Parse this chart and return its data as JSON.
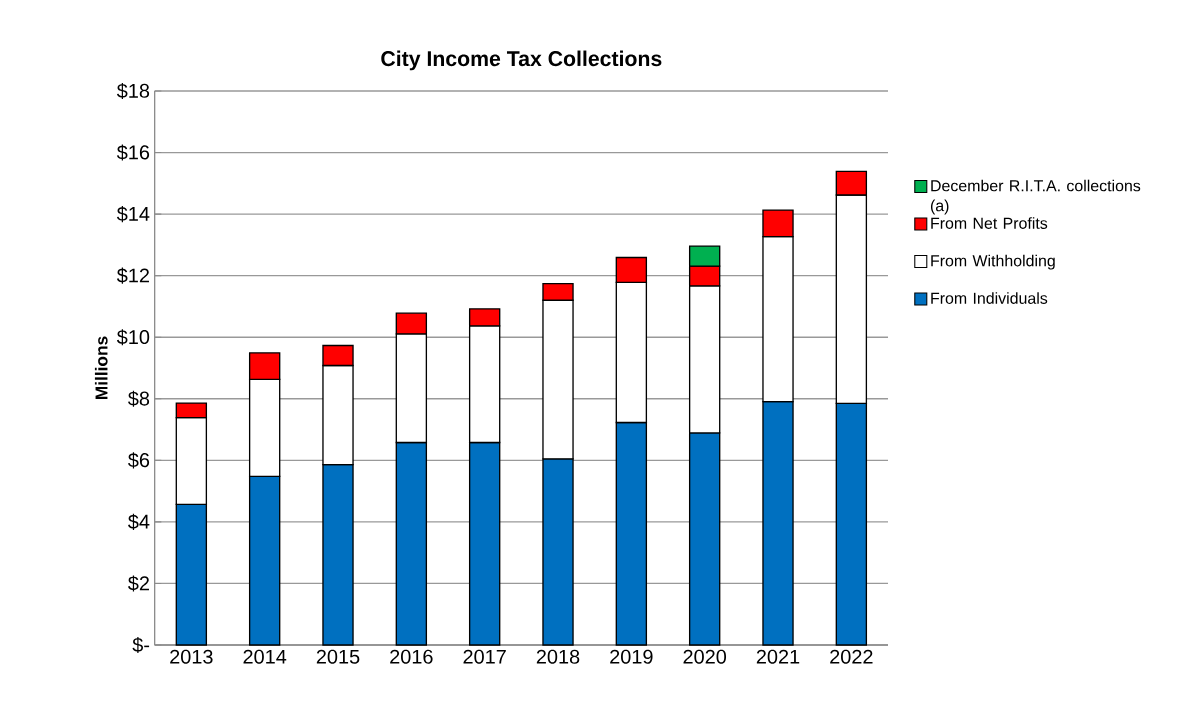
{
  "chart_data": {
    "type": "bar",
    "stacked": true,
    "title": "City Income Tax Collections",
    "ylabel": "Millions",
    "categories": [
      "2013",
      "2014",
      "2015",
      "2016",
      "2017",
      "2018",
      "2019",
      "2020",
      "2021",
      "2022"
    ],
    "series": [
      {
        "name": "From Individuals",
        "color": "#0070c0",
        "values": [
          4.57,
          5.48,
          5.86,
          6.58,
          6.58,
          6.05,
          7.23,
          6.89,
          7.91,
          7.85
        ]
      },
      {
        "name": "From Withholding",
        "color": "#ffffff",
        "values": [
          2.82,
          3.15,
          3.22,
          3.53,
          3.79,
          5.15,
          4.55,
          4.78,
          5.36,
          6.77
        ]
      },
      {
        "name": "From Net Profits",
        "color": "#ff0000",
        "values": [
          0.47,
          0.86,
          0.65,
          0.67,
          0.55,
          0.54,
          0.81,
          0.64,
          0.86,
          0.77
        ]
      },
      {
        "name": "December R.I.T.A. collections (a)",
        "color": "#00b050",
        "values": [
          null,
          null,
          null,
          null,
          null,
          null,
          null,
          0.65,
          null,
          null
        ]
      }
    ],
    "ylim": [
      0,
      18
    ],
    "yticks": [
      {
        "value": 0,
        "label": "$-"
      },
      {
        "value": 2,
        "label": "$2"
      },
      {
        "value": 4,
        "label": "$4"
      },
      {
        "value": 6,
        "label": "$6"
      },
      {
        "value": 8,
        "label": "$8"
      },
      {
        "value": 10,
        "label": "$10"
      },
      {
        "value": 12,
        "label": "$12"
      },
      {
        "value": 14,
        "label": "$14"
      },
      {
        "value": 16,
        "label": "$16"
      },
      {
        "value": 18,
        "label": "$18"
      }
    ],
    "grid": "y",
    "legend": "right"
  }
}
